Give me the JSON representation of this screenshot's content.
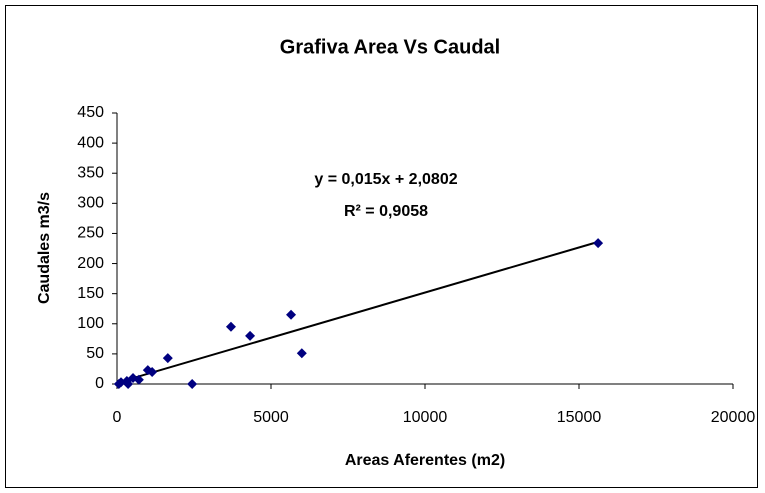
{
  "chart_data": {
    "type": "scatter",
    "title": "Grafiva Area Vs Caudal",
    "x_label": "Areas Aferentes (m2)",
    "y_label": "Caudales m3/s",
    "annotations": [
      "y = 0,015x + 2,0802",
      "R² = 0,9058"
    ],
    "series": [
      {
        "name": "Caudal",
        "color": "#000080",
        "x": [
          15620,
          5650,
          3700,
          4320,
          6000,
          2440,
          1650,
          1000,
          1140,
          520,
          710,
          320,
          130,
          60,
          360
        ],
        "values": [
          234,
          115,
          95,
          80,
          51,
          0,
          43,
          23,
          20,
          10,
          7,
          5,
          3,
          0,
          0
        ]
      }
    ],
    "trendline": {
      "color": "#000000",
      "x": [
        0,
        15620
      ],
      "values": [
        2,
        236
      ]
    },
    "xlim": [
      0,
      20000
    ],
    "xticks": [
      0,
      5000,
      10000,
      15000,
      20000
    ],
    "ylim": [
      0,
      450
    ],
    "yticks": [
      0,
      50,
      100,
      150,
      200,
      250,
      300,
      350,
      400,
      450
    ],
    "grid": false
  }
}
